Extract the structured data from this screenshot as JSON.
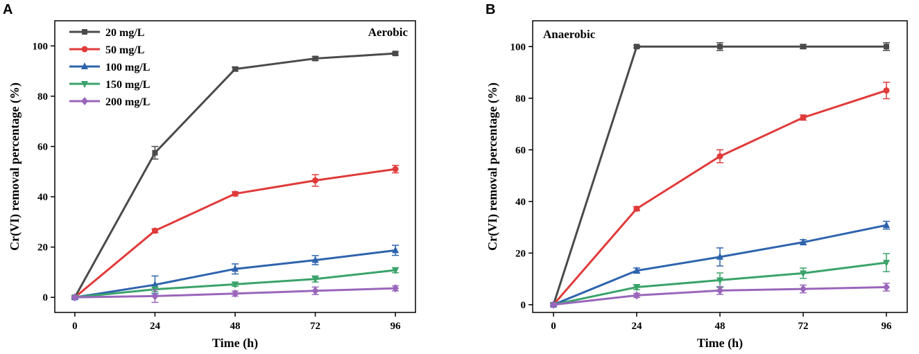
{
  "chart_data": [
    {
      "panel": "A",
      "type": "line",
      "annotation": "Aerobic",
      "xlabel": "Time (h)",
      "ylabel": "Cr(VI) removal percentage (%)",
      "x": [
        0,
        24,
        48,
        72,
        96
      ],
      "xticks": [
        0,
        24,
        48,
        72,
        96
      ],
      "yticks": [
        0,
        20,
        40,
        60,
        80,
        100
      ],
      "xlim": [
        -6,
        102
      ],
      "ylim": [
        -6,
        110
      ],
      "legend_position": "top-left",
      "series": [
        {
          "name": "20 mg/L",
          "color": "#4a4a4a",
          "marker": "square",
          "values": [
            0,
            57.5,
            90.8,
            95.0,
            97.0
          ],
          "errors": [
            0.5,
            2.5,
            0.8,
            0.8,
            0.6
          ]
        },
        {
          "name": "50 mg/L",
          "color": "#e03a3a",
          "marker": "circle",
          "values": [
            0,
            26.5,
            41.2,
            46.5,
            51.0
          ],
          "errors": [
            0.5,
            0.8,
            0.8,
            2.3,
            1.5
          ]
        },
        {
          "name": "100 mg/L",
          "color": "#2e63ad",
          "marker": "triangle-up",
          "values": [
            0,
            5.0,
            11.3,
            14.8,
            18.7
          ],
          "errors": [
            0.5,
            3.5,
            2.0,
            1.8,
            2.0
          ]
        },
        {
          "name": "150 mg/L",
          "color": "#3aa36a",
          "marker": "triangle-down",
          "values": [
            0,
            3.2,
            5.2,
            7.3,
            10.8
          ],
          "errors": [
            0.5,
            1.0,
            0.8,
            1.2,
            1.0
          ]
        },
        {
          "name": "200 mg/L",
          "color": "#9966bb",
          "marker": "diamond",
          "values": [
            0,
            0.5,
            1.5,
            2.6,
            3.6
          ],
          "errors": [
            0.5,
            2.5,
            1.0,
            1.5,
            1.0
          ]
        }
      ]
    },
    {
      "panel": "B",
      "type": "line",
      "annotation": "Anaerobic",
      "xlabel": "Time (h)",
      "ylabel": "Cr(VI) removal percentage (%)",
      "x": [
        0,
        24,
        48,
        72,
        96
      ],
      "xticks": [
        0,
        24,
        48,
        72,
        96
      ],
      "yticks": [
        0,
        20,
        40,
        60,
        80,
        100
      ],
      "xlim": [
        -6,
        102
      ],
      "ylim": [
        -3,
        110
      ],
      "series": [
        {
          "name": "20 mg/L",
          "color": "#4a4a4a",
          "marker": "square",
          "values": [
            0,
            100,
            100,
            100,
            100
          ],
          "errors": [
            0.5,
            0.5,
            1.5,
            0.8,
            1.5
          ]
        },
        {
          "name": "50 mg/L",
          "color": "#e03a3a",
          "marker": "circle",
          "values": [
            0,
            37.2,
            57.5,
            72.5,
            83.0
          ],
          "errors": [
            0.5,
            0.8,
            2.5,
            1.0,
            3.2
          ]
        },
        {
          "name": "100 mg/L",
          "color": "#2e63ad",
          "marker": "triangle-up",
          "values": [
            0,
            13.2,
            18.5,
            24.2,
            30.8
          ],
          "errors": [
            0.5,
            1.0,
            3.5,
            1.0,
            1.5
          ]
        },
        {
          "name": "150 mg/L",
          "color": "#3aa36a",
          "marker": "triangle-down",
          "values": [
            0,
            6.8,
            9.5,
            12.2,
            16.3
          ],
          "errors": [
            0.5,
            1.0,
            2.8,
            2.0,
            3.5
          ]
        },
        {
          "name": "200 mg/L",
          "color": "#9966bb",
          "marker": "diamond",
          "values": [
            0,
            3.6,
            5.5,
            6.1,
            6.8
          ],
          "errors": [
            0.5,
            0.8,
            1.5,
            1.5,
            1.5
          ]
        }
      ]
    }
  ]
}
